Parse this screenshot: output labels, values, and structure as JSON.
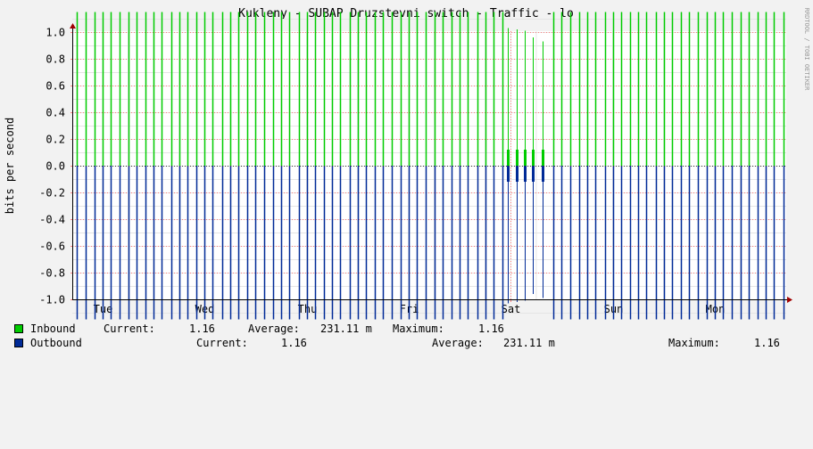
{
  "colors": {
    "inbound": "#00cc00",
    "inbound_dark": "#008800",
    "outbound": "#0000ff",
    "outbound_dark": "#002a97",
    "grid_major": "#ff8080",
    "grid_minor": "#e5e5e5",
    "frame": "#000000",
    "arrow": "#a00000",
    "background": "#f2f2f2",
    "plot_background": "#ffffff"
  },
  "watermark": "RRDTOOL / TOBI OETIKER",
  "legend": {
    "inbound": {
      "label": "Inbound",
      "current_label": "Current:",
      "current": "1.16",
      "average_label": "Average:",
      "average": "231.11 m",
      "maximum_label": "Maximum:",
      "maximum": "1.16"
    },
    "outbound": {
      "label": "Outbound",
      "current_label": "Current:",
      "current": "1.16",
      "average_label": "Average:",
      "average": "231.11 m",
      "maximum_label": "Maximum:",
      "maximum": "1.16"
    }
  },
  "chart_data": {
    "type": "bar",
    "title": "Kukleny - SUBAP Druzstevni switch - Traffic - lo",
    "ylabel": "bits per second",
    "xlabel": "",
    "ylim": [
      -1.15,
      1.15
    ],
    "yticks": [
      1.0,
      0.8,
      0.6,
      0.4,
      0.2,
      0.0,
      -0.2,
      -0.4,
      -0.6,
      -0.8,
      -1.0
    ],
    "ytick_labels": [
      "1.0",
      "0.8",
      "0.6",
      "0.4",
      "0.2",
      "0.0",
      "-0.2",
      "-0.4",
      "-0.6",
      "-0.8",
      "-1.0"
    ],
    "x_days": [
      "Tue",
      "Wed",
      "Thu",
      "Fri",
      "Sat",
      "Sun",
      "Mon"
    ],
    "x_range_days": [
      0,
      6.85
    ],
    "grid": true,
    "inbound_spikes": {
      "regular_value": 1.15,
      "regular_times": [
        -0.33,
        -0.25,
        -0.17,
        -0.08,
        0.0,
        0.08,
        0.17,
        0.25,
        0.33,
        0.42,
        0.5,
        0.58,
        0.67,
        0.75,
        0.83,
        0.92,
        1.0,
        1.08,
        1.17,
        1.25,
        1.33,
        1.42,
        1.5,
        1.58,
        1.67,
        1.75,
        1.83,
        1.92,
        2.0,
        2.08,
        2.17,
        2.25,
        2.33,
        2.42,
        2.5,
        2.58,
        2.67,
        2.75,
        2.83,
        2.92,
        3.0,
        3.08,
        3.17,
        3.25,
        3.33,
        3.42,
        3.5,
        3.58,
        3.67,
        3.75,
        3.83,
        3.92,
        4.42,
        4.5,
        4.58,
        4.67,
        4.75,
        4.83,
        4.92,
        5.0,
        5.08,
        5.17,
        5.25,
        5.33,
        5.42,
        5.5,
        5.58,
        5.67,
        5.75,
        5.83,
        5.92,
        6.0,
        6.08,
        6.17,
        6.25,
        6.33,
        6.42,
        6.5,
        6.58,
        6.67
      ],
      "sat_times": [
        3.97,
        4.06,
        4.14,
        4.22,
        4.31
      ],
      "sat_peak": [
        1.03,
        1.02,
        1.01,
        0.96,
        0.93
      ],
      "sat_band": [
        0.12,
        0.12,
        0.12,
        0.12,
        0.12
      ]
    },
    "outbound_spikes": {
      "regular_value": -1.15,
      "sat_times": [
        3.97,
        4.06,
        4.14,
        4.22,
        4.31
      ],
      "sat_trough": [
        -1.03,
        -1.02,
        -1.01,
        -0.96,
        -0.99
      ],
      "sat_band": [
        -0.12,
        -0.12,
        -0.12,
        -0.12,
        -0.12
      ]
    }
  }
}
